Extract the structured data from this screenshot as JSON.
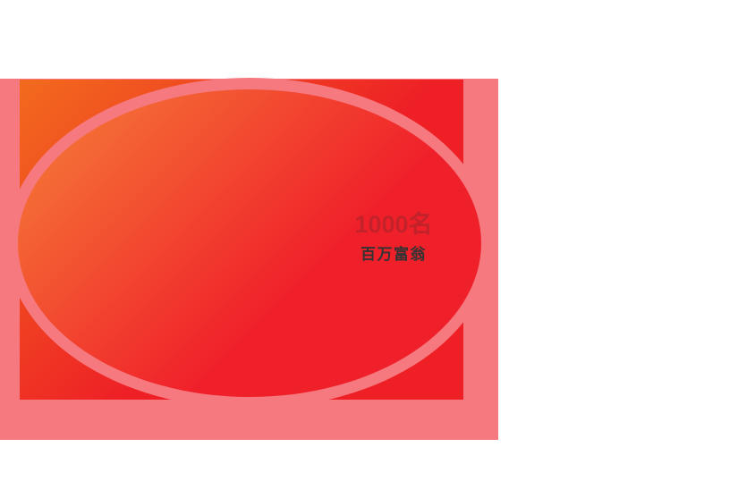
{
  "banner": {
    "winners_count": "1000名",
    "winners_label": "百万富翁",
    "colors": {
      "page_bg": "#FFFFFF",
      "frame_pink": "#F5797F",
      "panel_orange_start": "#F26B1D",
      "panel_red_end": "#EE2026",
      "circle_orange_start": "#F58138",
      "circle_red_end": "#F0202A",
      "count_text": "#C4222A",
      "label_text": "#333333"
    }
  }
}
